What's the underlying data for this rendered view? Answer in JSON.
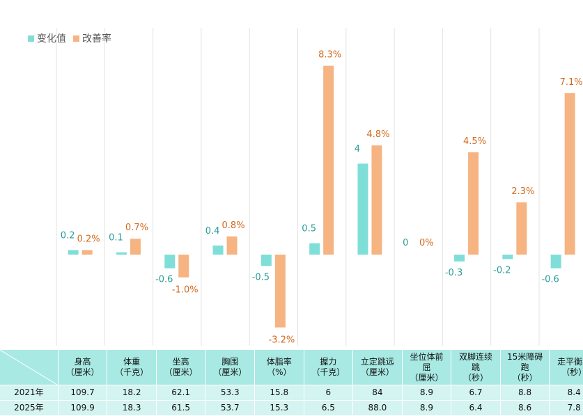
{
  "chart_data": {
    "type": "bar",
    "categories": [
      "身高",
      "体重",
      "坐高",
      "胸围",
      "体脂率",
      "握力",
      "立定跳远",
      "坐位体前屈",
      "双脚连续跳",
      "15米障碍跑",
      "走平衡木"
    ],
    "series": [
      {
        "name": "变化值",
        "values": [
          0.2,
          0.1,
          -0.6,
          0.4,
          -0.5,
          0.5,
          4,
          0,
          -0.3,
          -0.2,
          -0.6
        ],
        "labels": [
          "0.2",
          "0.1",
          "-0.6",
          "0.4",
          "-0.5",
          "0.5",
          "4",
          "0",
          "-0.3",
          "-0.2",
          "-0.6"
        ],
        "color": "#7fded8",
        "label_color": "#2a9d99"
      },
      {
        "name": "改善率",
        "values": [
          0.2,
          0.7,
          -1.0,
          0.8,
          -3.2,
          8.3,
          4.8,
          0,
          4.5,
          2.3,
          7.1
        ],
        "labels": [
          "0.2%",
          "0.7%",
          "-1.0%",
          "0.8%",
          "-3.2%",
          "8.3%",
          "4.8%",
          "0%",
          "4.5%",
          "2.3%",
          "7.1%"
        ],
        "color": "#f5b482",
        "label_color": "#d2691e"
      }
    ],
    "legend": "top-left",
    "grid": "vertical"
  },
  "table": {
    "headers": [
      [
        "身高",
        "（厘米）"
      ],
      [
        "体重",
        "（千克）"
      ],
      [
        "坐高",
        "（厘米）"
      ],
      [
        "胸围",
        "（厘米）"
      ],
      [
        "体脂率",
        "（%）"
      ],
      [
        "握力",
        "（千克）"
      ],
      [
        "立定跳远",
        "（厘米）"
      ],
      [
        "坐位体前",
        "屈",
        "（厘米）"
      ],
      [
        "双脚连续",
        "跳",
        "（秒）"
      ],
      [
        "15米障碍",
        "跑",
        "（秒）"
      ],
      [
        "走平衡木",
        "（秒）"
      ]
    ],
    "rows": [
      {
        "label": "2021年",
        "values": [
          "109.7",
          "18.2",
          "62.1",
          "53.3",
          "15.8",
          "6",
          "84",
          "8.9",
          "6.7",
          "8.8",
          "8.4"
        ]
      },
      {
        "label": "2025年",
        "values": [
          "109.9",
          "18.3",
          "61.5",
          "53.7",
          "15.3",
          "6.5",
          "88.0",
          "8.9",
          "6.4",
          "8.6",
          "7.8"
        ]
      }
    ]
  }
}
